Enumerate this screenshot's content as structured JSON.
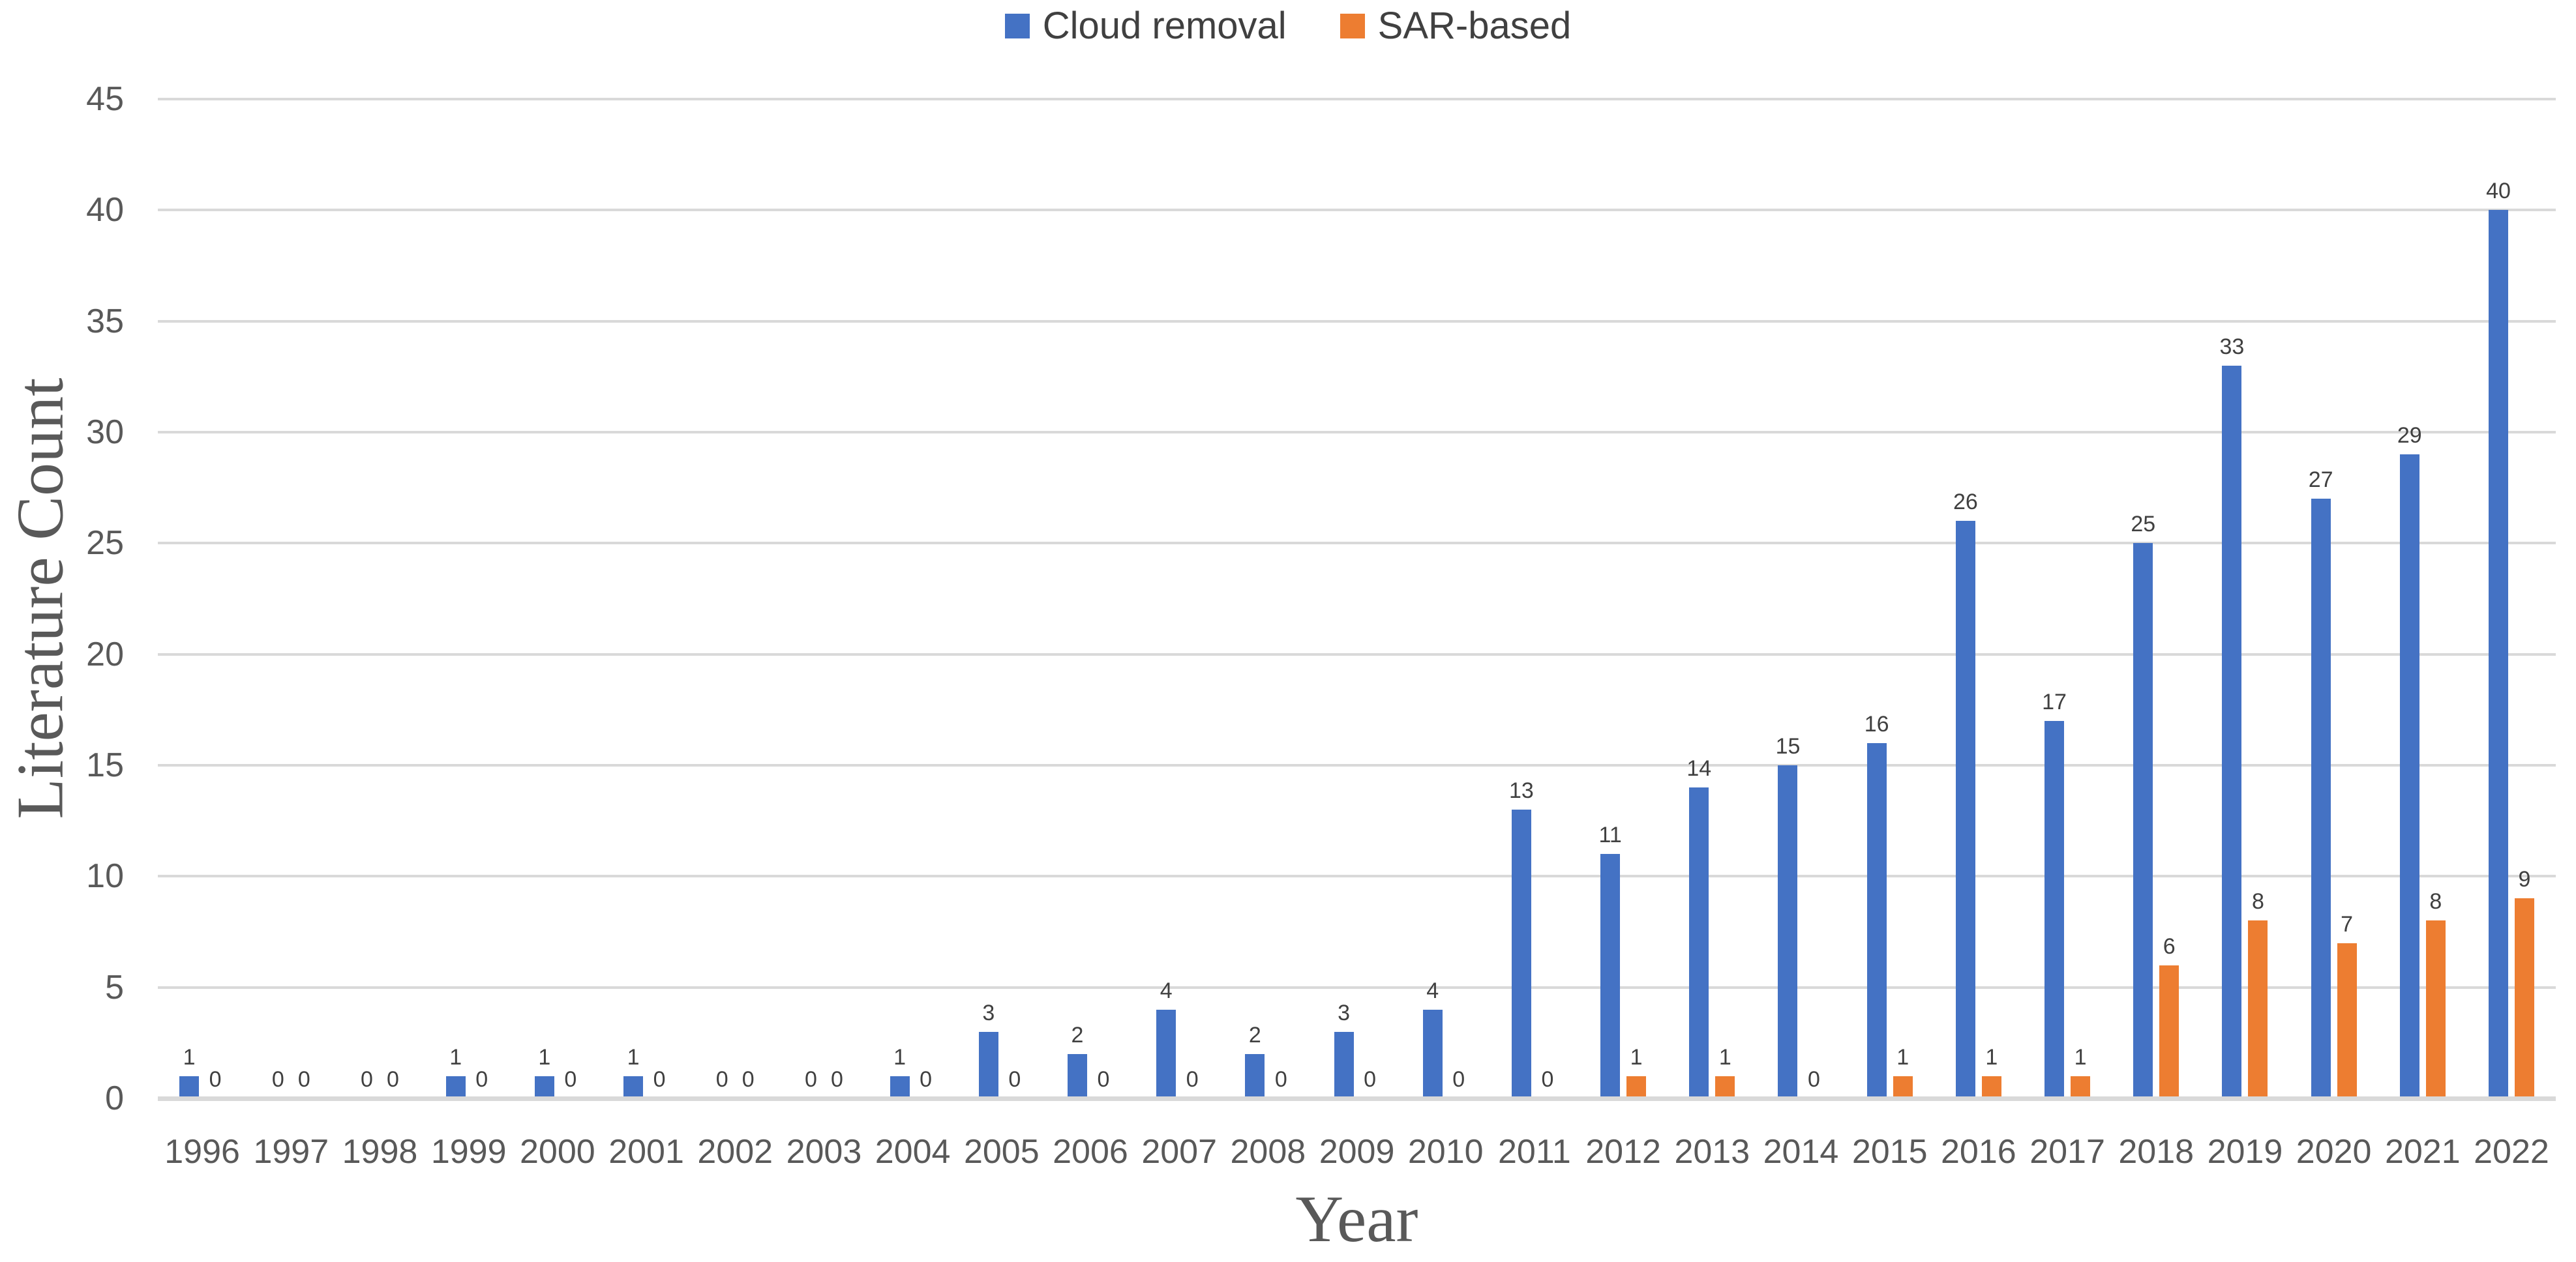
{
  "legend": {
    "items": [
      {
        "label": "Cloud removal",
        "color": "#4472C4"
      },
      {
        "label": "SAR-based",
        "color": "#ED7D31"
      }
    ]
  },
  "y_axis": {
    "title": "Literature Count"
  },
  "x_axis": {
    "title": "Year"
  },
  "colors": {
    "gridline": "#D9D9D9",
    "axis_line": "#D9D9D9",
    "tick_text": "#595959",
    "data_label_text": "#404040",
    "legend_text": "#404040"
  },
  "chart_data": {
    "type": "bar",
    "title": "",
    "xlabel": "Year",
    "ylabel": "Literature Count",
    "ylim": [
      0,
      45
    ],
    "ytick_step": 5,
    "yticks": [
      0,
      5,
      10,
      15,
      20,
      25,
      30,
      35,
      40,
      45
    ],
    "grid": "horizontal",
    "legend_position": "top-center",
    "data_labels": true,
    "categories": [
      "1996",
      "1997",
      "1998",
      "1999",
      "2000",
      "2001",
      "2002",
      "2003",
      "2004",
      "2005",
      "2006",
      "2007",
      "2008",
      "2009",
      "2010",
      "2011",
      "2012",
      "2013",
      "2014",
      "2015",
      "2016",
      "2017",
      "2018",
      "2019",
      "2020",
      "2021",
      "2022"
    ],
    "series": [
      {
        "name": "Cloud removal",
        "color": "#4472C4",
        "values": [
          1,
          0,
          0,
          1,
          1,
          1,
          0,
          0,
          1,
          3,
          2,
          4,
          2,
          3,
          4,
          13,
          11,
          14,
          15,
          16,
          26,
          17,
          25,
          33,
          27,
          29,
          40
        ]
      },
      {
        "name": "SAR-based",
        "color": "#ED7D31",
        "values": [
          0,
          0,
          0,
          0,
          0,
          0,
          0,
          0,
          0,
          0,
          0,
          0,
          0,
          0,
          0,
          0,
          1,
          1,
          0,
          1,
          1,
          1,
          6,
          8,
          7,
          8,
          9
        ]
      }
    ]
  }
}
